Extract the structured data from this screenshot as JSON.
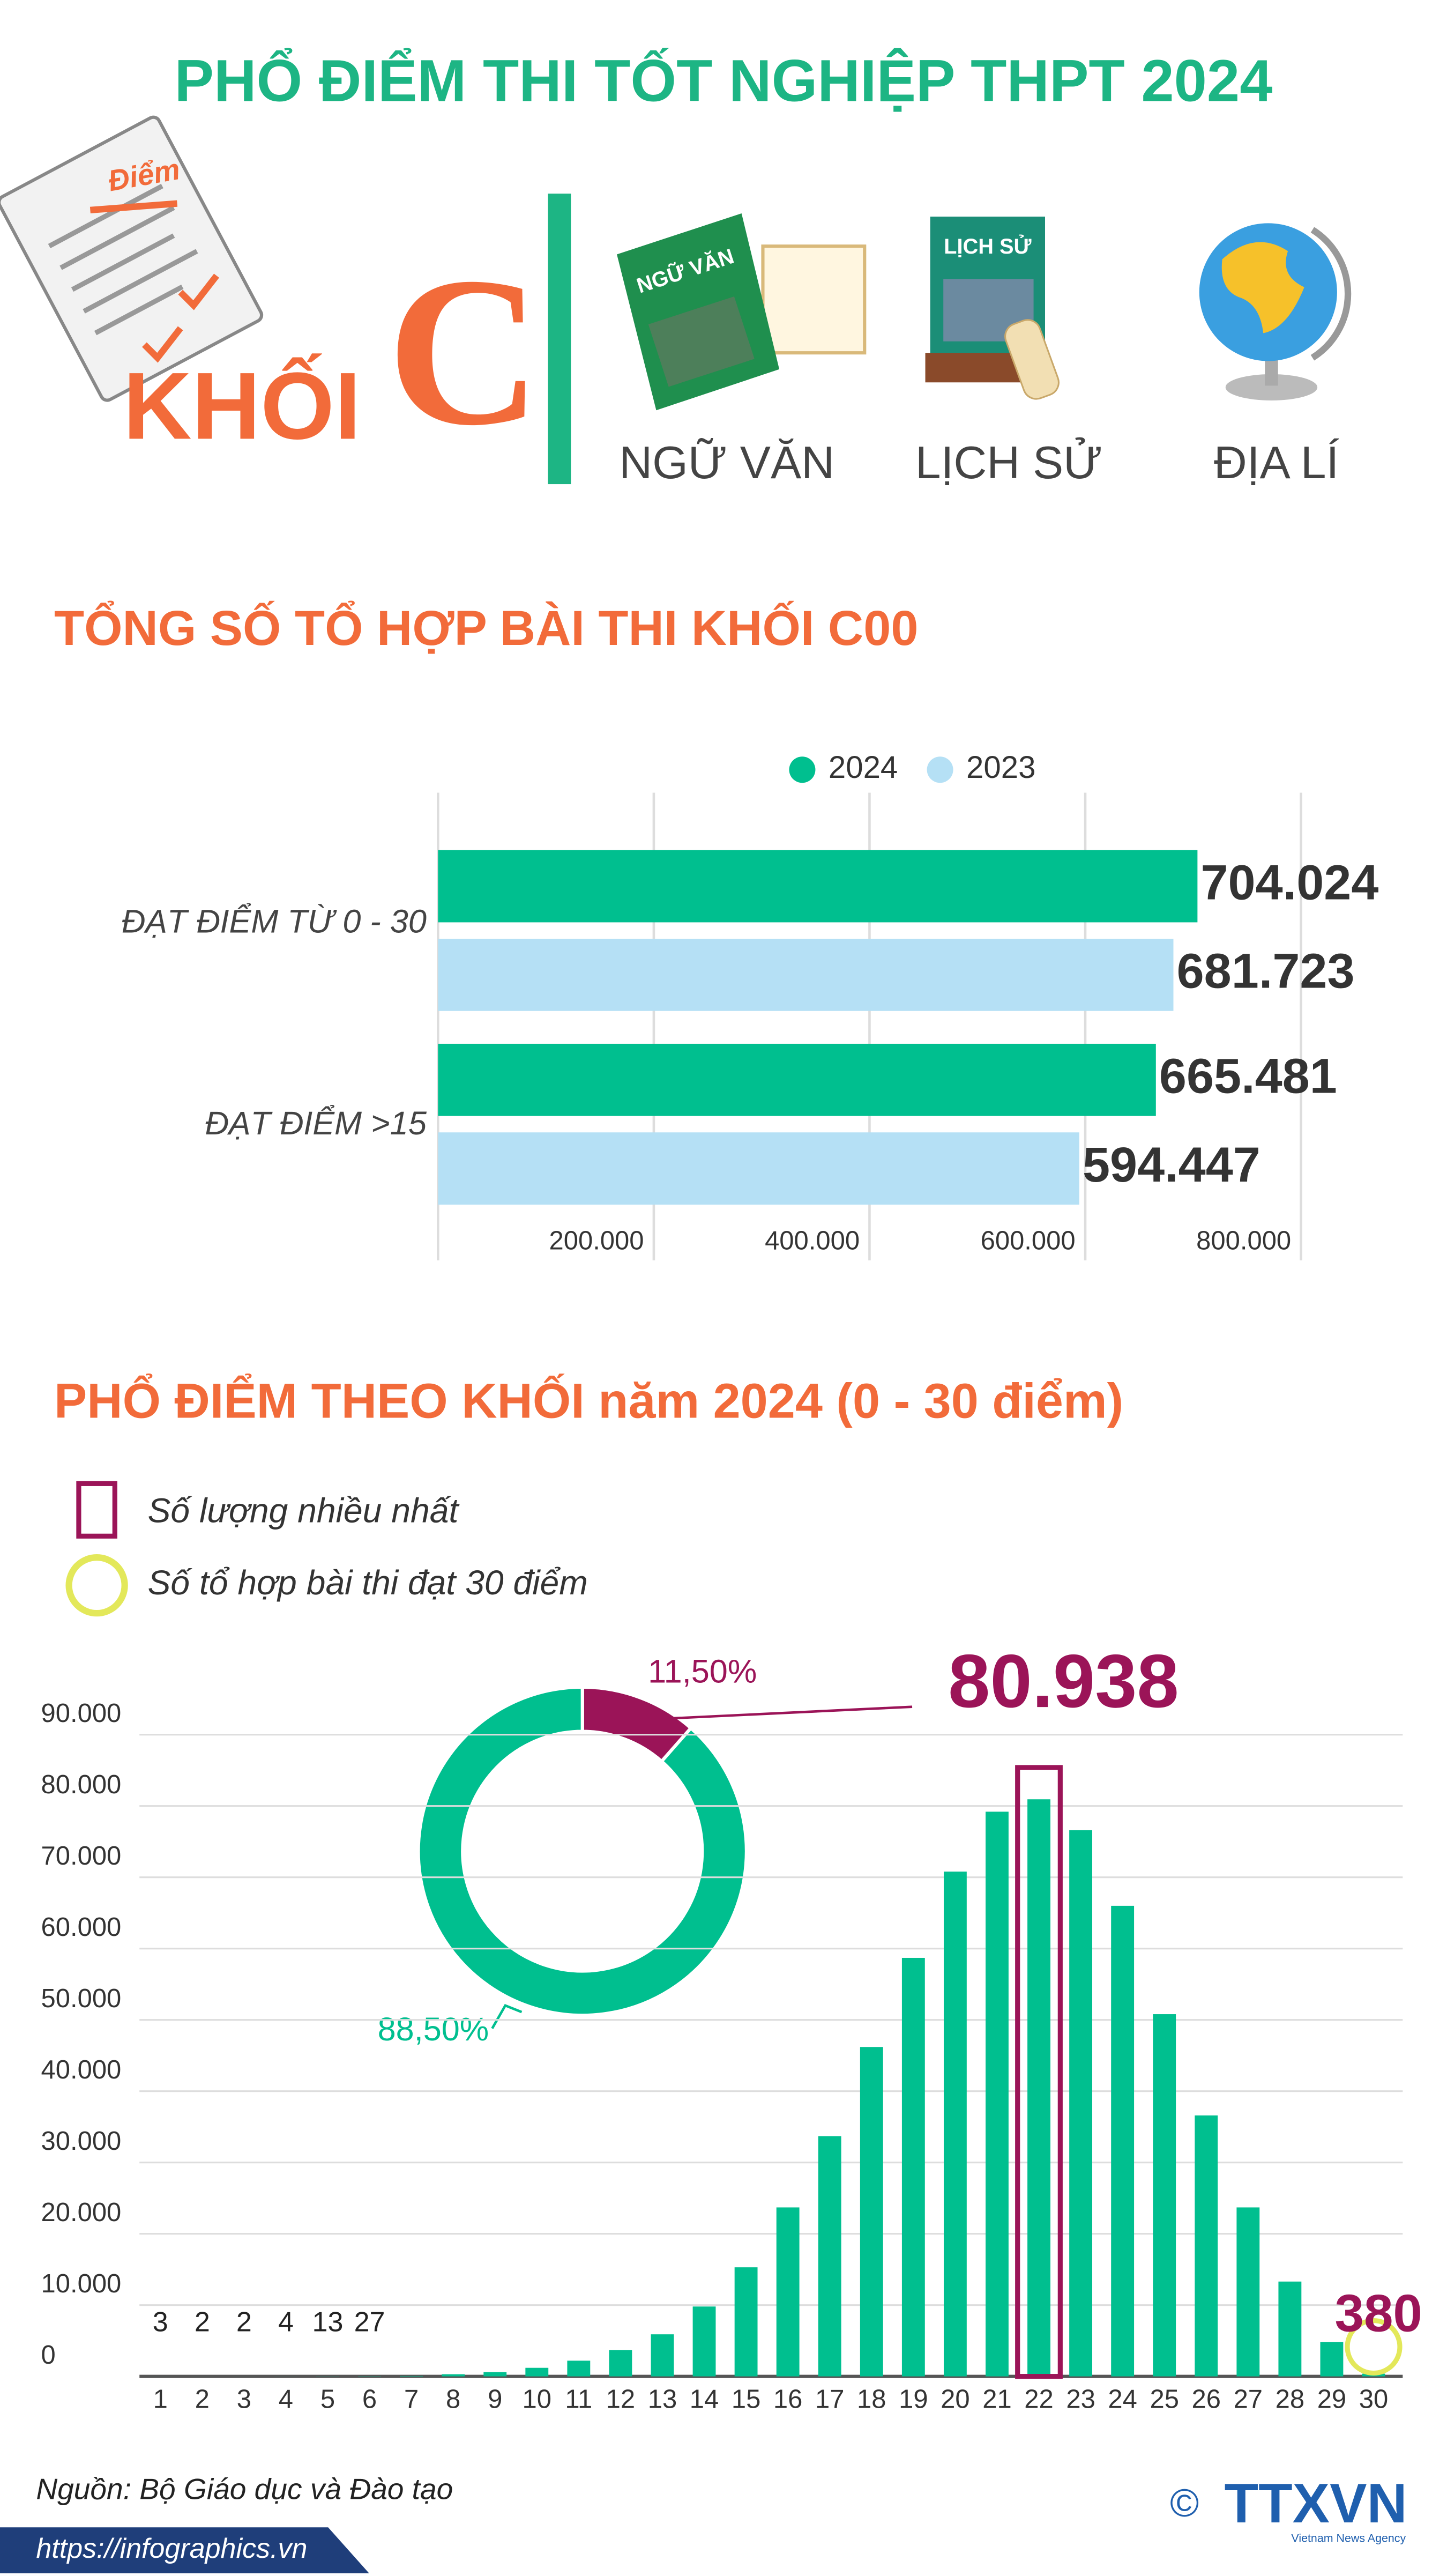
{
  "header": {
    "title": "PHỔ ĐIỂM THI TỐT NGHIỆP THPT 2024",
    "paper_label": "Điểm",
    "group_word": "KHỐI",
    "group_letter": "C",
    "subjects": [
      "NGỮ VĂN",
      "LỊCH SỬ",
      "ĐỊA LÍ"
    ],
    "book_covers": [
      "NGỮ VĂN",
      "LỊCH SỬ"
    ]
  },
  "chart_data": [
    {
      "type": "bar",
      "orientation": "horizontal",
      "title": "TỔNG SỐ TỔ HỢP BÀI THI KHỐI C00",
      "categories": [
        "ĐẠT ĐIỂM TỪ 0 - 30",
        "ĐẠT ĐIỂM >15"
      ],
      "series": [
        {
          "name": "2024",
          "color": "#00bf8f",
          "values": [
            704024,
            665481
          ],
          "value_labels": [
            "704.024",
            "665.481"
          ]
        },
        {
          "name": "2023",
          "color": "#b5e0f5",
          "values": [
            681723,
            594447
          ],
          "value_labels": [
            "681.723",
            "594.447"
          ]
        }
      ],
      "xlim": [
        0,
        800000
      ],
      "xticks": [
        {
          "value": 200000,
          "label": "200.000"
        },
        {
          "value": 400000,
          "label": "400.000"
        },
        {
          "value": 600000,
          "label": "600.000"
        },
        {
          "value": 800000,
          "label": "800.000"
        }
      ],
      "grid": true,
      "legend": "top"
    },
    {
      "type": "pie",
      "donut": true,
      "values": [
        11.5,
        88.5
      ],
      "value_labels": [
        "11,50%",
        "88,50%"
      ],
      "colors": [
        "#9b1458",
        "#00bf8f"
      ]
    },
    {
      "type": "bar",
      "orientation": "vertical",
      "title": "PHỔ ĐIỂM THEO KHỐI năm 2024 (0 - 30 điểm)",
      "legend_items": [
        "Số lượng nhiều nhất",
        "Số tổ hợp bài thi đạt 30 điểm"
      ],
      "x": [
        1,
        2,
        3,
        4,
        5,
        6,
        7,
        8,
        9,
        10,
        11,
        12,
        13,
        14,
        15,
        16,
        17,
        18,
        19,
        20,
        21,
        22,
        23,
        24,
        25,
        26,
        27,
        28,
        29,
        30
      ],
      "values": [
        3,
        2,
        2,
        4,
        13,
        27,
        60,
        300,
        600,
        1200,
        2200,
        3700,
        5900,
        9800,
        15300,
        23700,
        33700,
        46200,
        58700,
        70800,
        79200,
        80938,
        76600,
        66000,
        50800,
        36600,
        23700,
        13300,
        4800,
        380
      ],
      "value_labels": [
        "3",
        "2",
        "2",
        "4",
        "13",
        "27",
        null,
        null,
        null,
        null,
        null,
        null,
        null,
        null,
        null,
        null,
        null,
        null,
        null,
        null,
        null,
        "80.938",
        null,
        null,
        null,
        null,
        null,
        null,
        null,
        "380"
      ],
      "color": "#00bf8f",
      "highlight_color": "#9b1458",
      "circle_color": "#e3e85a",
      "xlim": [
        0.5,
        30.5
      ],
      "xticks": [
        1,
        2,
        3,
        4,
        5,
        6,
        7,
        8,
        9,
        10,
        11,
        12,
        13,
        14,
        15,
        16,
        17,
        18,
        19,
        20,
        21,
        22,
        23,
        24,
        25,
        26,
        27,
        28,
        29,
        30
      ],
      "ylim": [
        0,
        90000
      ],
      "yticks": [
        0,
        {
          "value": 10000,
          "label": "10.000"
        },
        {
          "value": 20000,
          "label": "20.000"
        },
        {
          "value": 30000,
          "label": "30.000"
        },
        {
          "value": 40000,
          "label": "40.000"
        },
        {
          "value": 50000,
          "label": "50.000"
        },
        {
          "value": 60000,
          "label": "60.000"
        },
        {
          "value": 70000,
          "label": "70.000"
        },
        {
          "value": 80000,
          "label": "80.000"
        },
        {
          "value": 90000,
          "label": "90.000"
        }
      ],
      "grid": true
    }
  ],
  "footer": {
    "source": "Nguồn: Bộ Giáo dục và Đào tạo",
    "url": "https://infographics.vn",
    "copyright": "©",
    "logo": "TTXVN",
    "logo_sub": "Vietnam News Agency"
  }
}
